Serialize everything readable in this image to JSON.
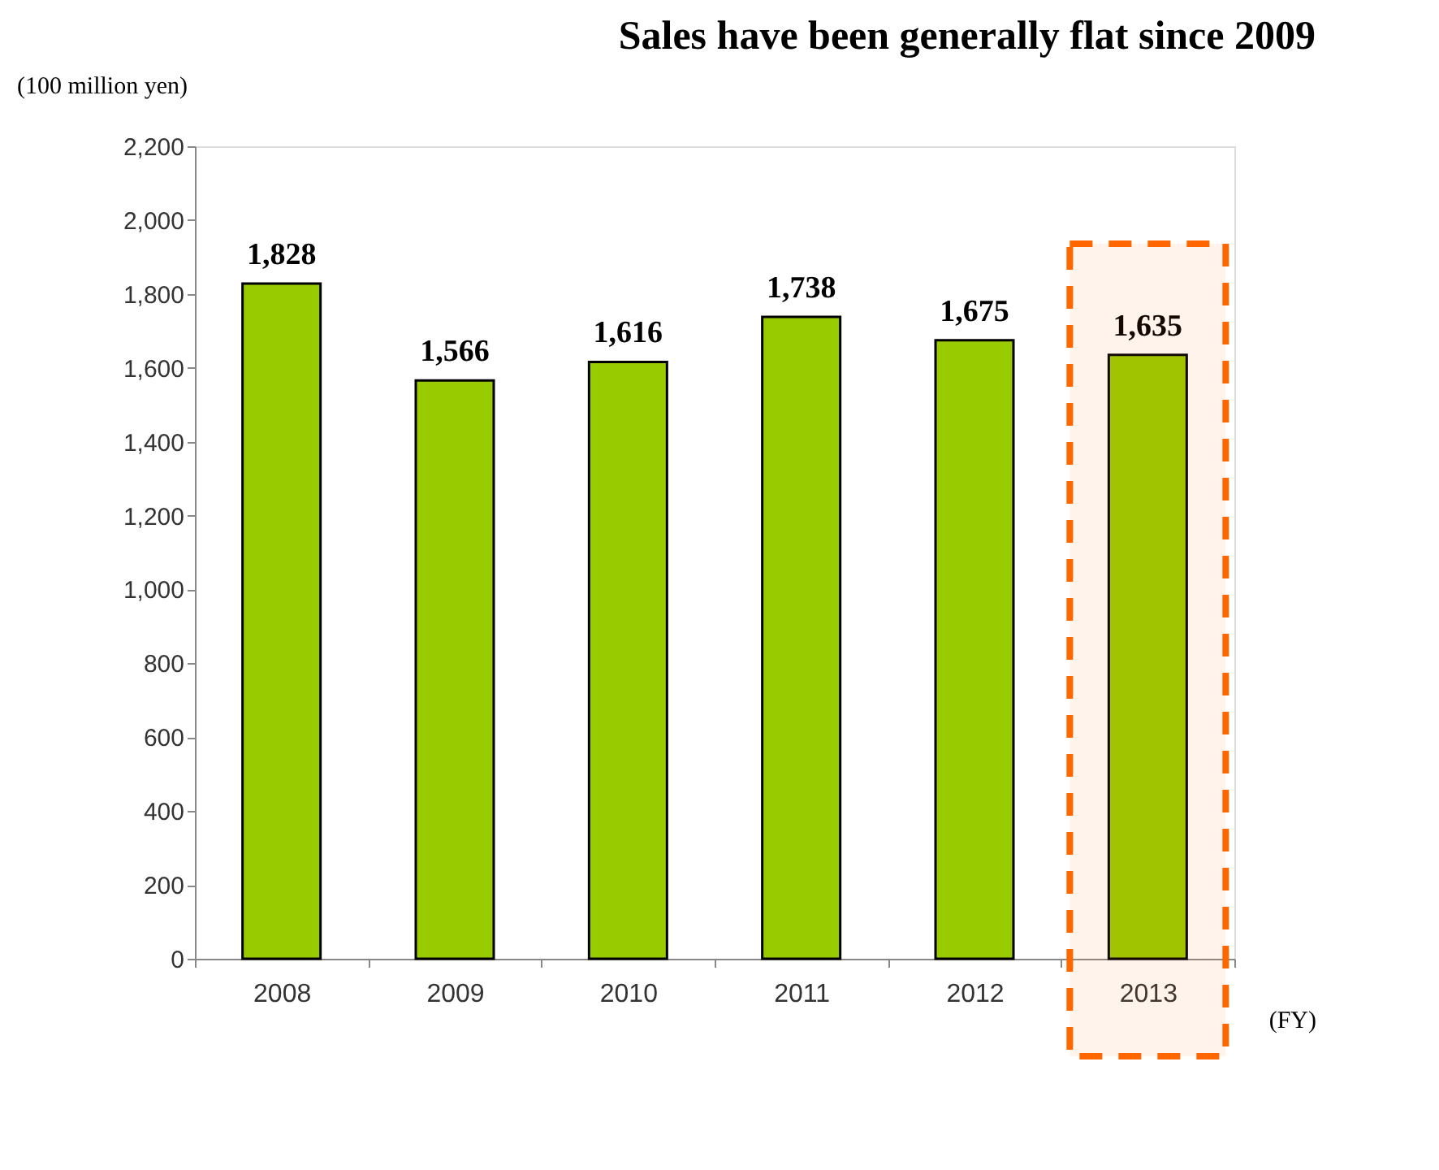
{
  "chart_data": {
    "type": "bar",
    "title": "Sales have been generally flat since 2009",
    "ylabel": "(100 million yen)",
    "xlabel": "(FY)",
    "categories": [
      "2008",
      "2009",
      "2010",
      "2011",
      "2012",
      "2013"
    ],
    "values": [
      1828,
      1566,
      1616,
      1738,
      1675,
      1635
    ],
    "value_labels": [
      "1,828",
      "1,566",
      "1,616",
      "1,738",
      "1,675",
      "1,635"
    ],
    "color": "#99cc00",
    "ylim": [
      0,
      2200
    ],
    "yticks": [
      0,
      200,
      400,
      600,
      800,
      {
        "value": 1000,
        "label": "1,000"
      },
      {
        "value": 1200,
        "label": "1,200"
      },
      {
        "value": 1400,
        "label": "1,400"
      },
      {
        "value": 1600,
        "label": "1,600"
      },
      {
        "value": 1800,
        "label": "1,800"
      },
      {
        "value": 2000,
        "label": "2,000"
      },
      {
        "value": 2200,
        "label": "2,200"
      }
    ],
    "grid": false,
    "bands": [
      {
        "axis": "x",
        "from": "2013",
        "to": "2013",
        "color": "#ff6600"
      }
    ]
  }
}
